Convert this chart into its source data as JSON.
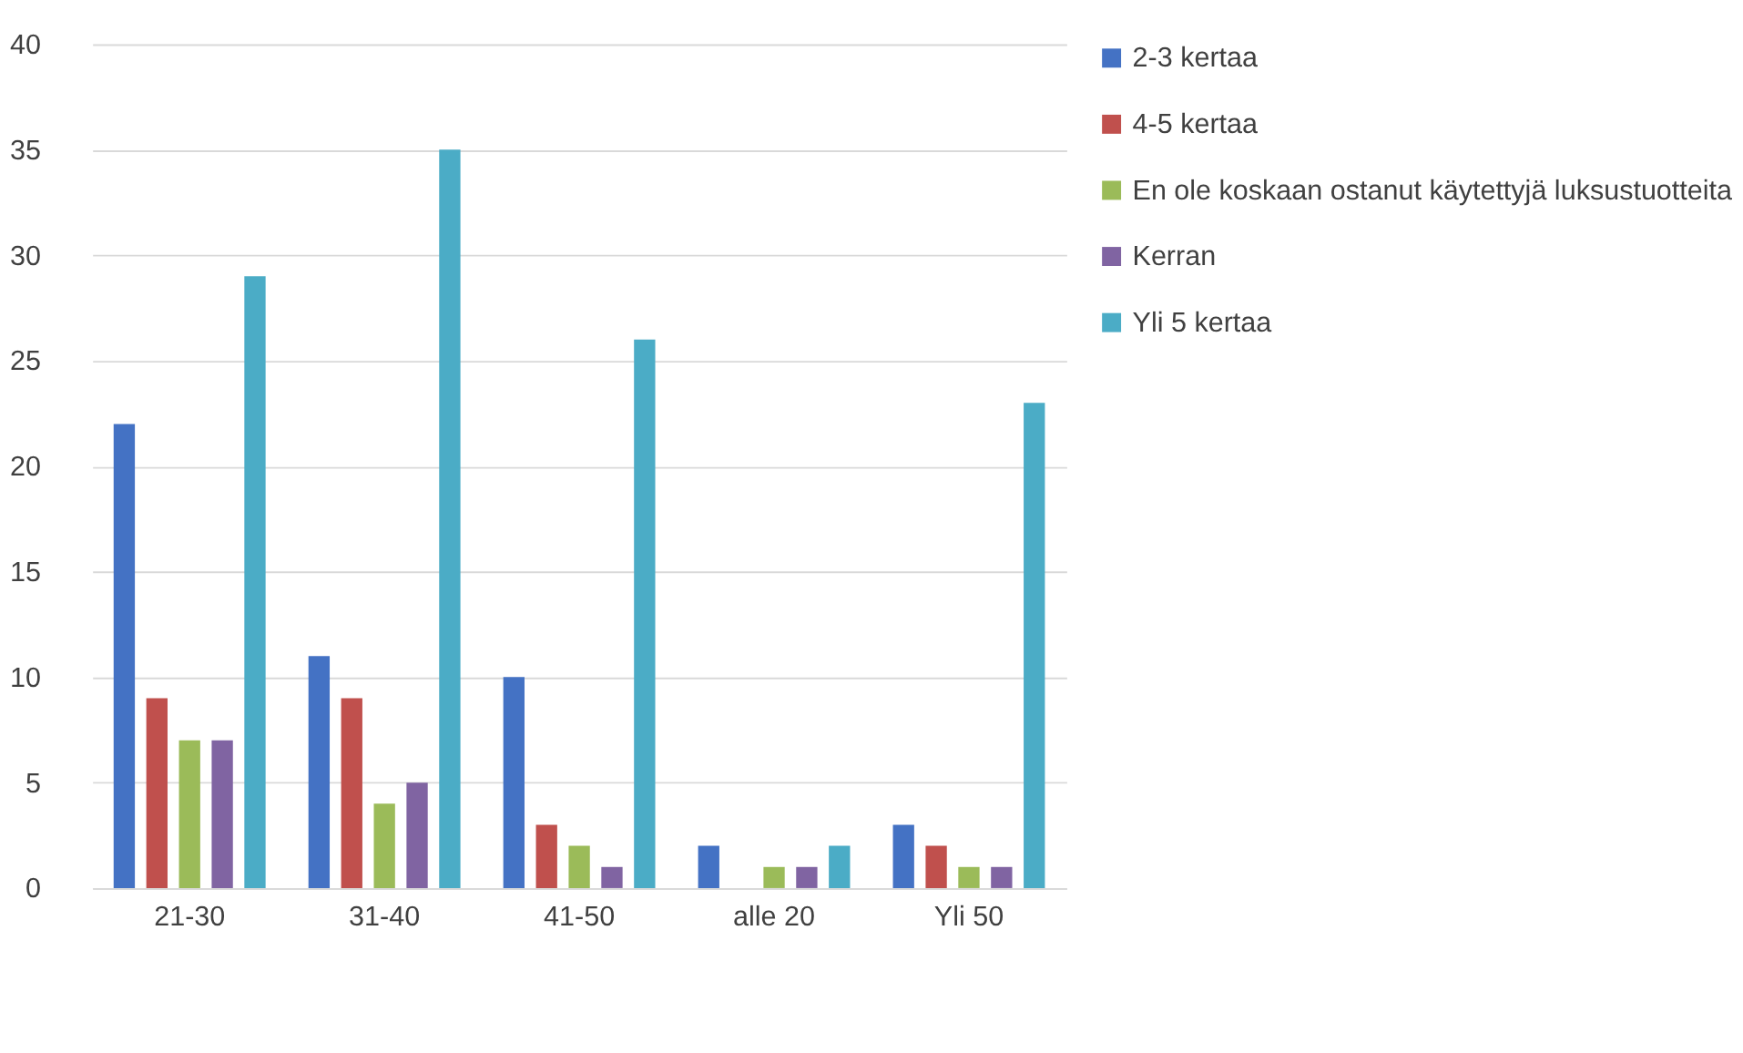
{
  "chart_data": {
    "type": "bar",
    "categories": [
      "21-30",
      "31-40",
      "41-50",
      "alle 20",
      "Yli 50"
    ],
    "series": [
      {
        "name": "2-3 kertaa",
        "color": "#4472c4",
        "values": [
          22,
          11,
          10,
          2,
          3
        ]
      },
      {
        "name": "4-5 kertaa",
        "color": "#c0504d",
        "values": [
          9,
          9,
          3,
          0,
          2
        ]
      },
      {
        "name": "En ole koskaan ostanut käytettyjä luksustuotteita",
        "color": "#9bbb59",
        "values": [
          7,
          4,
          2,
          1,
          1
        ]
      },
      {
        "name": "Kerran",
        "color": "#8064a2",
        "values": [
          7,
          5,
          1,
          1,
          1
        ]
      },
      {
        "name": "Yli 5 kertaa",
        "color": "#4bacc6",
        "values": [
          29,
          35,
          26,
          2,
          23
        ]
      }
    ],
    "ylim": [
      0,
      40
    ],
    "yticks": [
      0,
      5,
      10,
      15,
      20,
      25,
      30,
      35,
      40
    ],
    "grid": "y",
    "legend": "right"
  }
}
